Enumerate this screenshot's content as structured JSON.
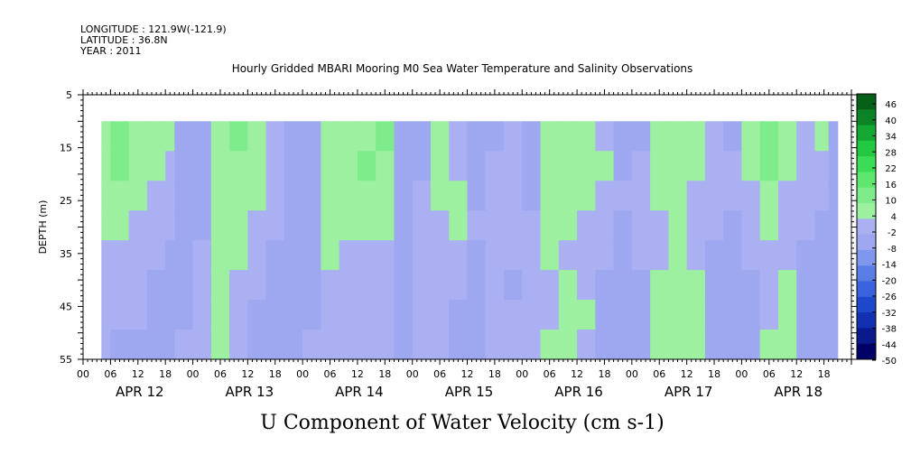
{
  "header": {
    "longitude": "LONGITUDE : 121.9W(-121.9)",
    "latitude": "LATITUDE : 36.8N",
    "year": "YEAR : 2011"
  },
  "chart_data": {
    "type": "heatmap",
    "title": "Hourly Gridded MBARI Mooring M0 Sea Water Temperature and Salinity Observations",
    "xlabel": "",
    "ylabel": "DEPTH (m)",
    "colorbar_label": "U Component of Water Velocity (cm s-1)",
    "ylim": [
      5,
      55
    ],
    "y_reversed": true,
    "yticks": [
      5,
      15,
      25,
      35,
      45,
      55
    ],
    "xticks_hours": [
      "00",
      "06",
      "12",
      "18",
      "00",
      "06",
      "12",
      "18",
      "00",
      "06",
      "12",
      "18",
      "00",
      "06",
      "12",
      "18",
      "00",
      "06",
      "12",
      "18",
      "00",
      "06",
      "12",
      "18",
      "00",
      "06",
      "12",
      "18"
    ],
    "x_days": [
      "APR 12",
      "APR 13",
      "APR 14",
      "APR 15",
      "APR 16",
      "APR 17",
      "APR 18"
    ],
    "x_range_hours": [
      0,
      168
    ],
    "data_extent": {
      "x_start_hour": 4,
      "x_end_hour": 165,
      "depth_top": 10,
      "depth_bottom": 55
    },
    "colorbar": {
      "levels": [
        -50,
        -44,
        -38,
        -32,
        -26,
        -20,
        -14,
        -8,
        -2,
        4,
        10,
        16,
        22,
        28,
        34,
        40,
        46
      ],
      "labels": [
        "46",
        "40",
        "34",
        "28",
        "22",
        "16",
        "10",
        "4",
        "-2",
        "-8",
        "-14",
        "-20",
        "-26",
        "-32",
        "-38",
        "-44",
        "-50"
      ],
      "colors": [
        "#000066",
        "#0a1a8c",
        "#1230b0",
        "#1e48cc",
        "#3a62dc",
        "#5a7ee6",
        "#7f97ec",
        "#9ea8f0",
        "#aab0f2",
        "#9cf0a0",
        "#7eec8a",
        "#5ee66e",
        "#3cdc54",
        "#22c840",
        "#14a832",
        "#0c8426",
        "#06601a"
      ]
    },
    "columns": [
      {
        "start": 4,
        "end": 6,
        "profile": [
          8,
          6,
          4,
          4,
          3,
          2,
          1,
          0
        ]
      },
      {
        "start": 6,
        "end": 10,
        "profile": [
          10,
          12,
          9,
          6,
          3,
          0,
          -2,
          -3
        ]
      },
      {
        "start": 10,
        "end": 14,
        "profile": [
          9,
          8,
          6,
          3,
          1,
          -2,
          -2,
          -3
        ]
      },
      {
        "start": 14,
        "end": 18,
        "profile": [
          6,
          5,
          3,
          2,
          -2,
          -3,
          -4,
          -3
        ]
      },
      {
        "start": 18,
        "end": 20,
        "profile": [
          4,
          3,
          2,
          0,
          -3,
          -4,
          -5,
          -5
        ]
      },
      {
        "start": 20,
        "end": 24,
        "profile": [
          -4,
          -5,
          -6,
          -6,
          -5,
          -4,
          -3,
          -2
        ]
      },
      {
        "start": 24,
        "end": 28,
        "profile": [
          -5,
          -4,
          -4,
          -3,
          -2,
          -1,
          1,
          2
        ]
      },
      {
        "start": 28,
        "end": 32,
        "profile": [
          6,
          8,
          7,
          6,
          5,
          6,
          7,
          8
        ]
      },
      {
        "start": 32,
        "end": 36,
        "profile": [
          10,
          9,
          8,
          6,
          5,
          3,
          2,
          1
        ]
      },
      {
        "start": 36,
        "end": 40,
        "profile": [
          7,
          5,
          4,
          2,
          0,
          -2,
          -3,
          -4
        ]
      },
      {
        "start": 40,
        "end": 44,
        "profile": [
          3,
          2,
          0,
          -2,
          -3,
          -4,
          -5,
          -4
        ]
      },
      {
        "start": 44,
        "end": 48,
        "profile": [
          -4,
          -5,
          -6,
          -6,
          -6,
          -5,
          -4,
          -3
        ]
      },
      {
        "start": 48,
        "end": 52,
        "profile": [
          -6,
          -6,
          -5,
          -5,
          -5,
          -4,
          -3,
          -2
        ]
      },
      {
        "start": 52,
        "end": 56,
        "profile": [
          7,
          8,
          6,
          5,
          4,
          3,
          2,
          3
        ]
      },
      {
        "start": 56,
        "end": 60,
        "profile": [
          9,
          7,
          5,
          4,
          2,
          1,
          2,
          3
        ]
      },
      {
        "start": 60,
        "end": 64,
        "profile": [
          8,
          10,
          8,
          5,
          3,
          2,
          1,
          0
        ]
      },
      {
        "start": 64,
        "end": 68,
        "profile": [
          12,
          9,
          6,
          4,
          2,
          0,
          -1,
          -2
        ]
      },
      {
        "start": 68,
        "end": 72,
        "profile": [
          -3,
          -3,
          -4,
          -5,
          -6,
          -6,
          -7,
          -7
        ]
      },
      {
        "start": 72,
        "end": 76,
        "profile": [
          -4,
          -3,
          -1,
          1,
          2,
          2,
          2,
          3
        ]
      },
      {
        "start": 76,
        "end": 80,
        "profile": [
          5,
          6,
          4,
          3,
          3,
          2,
          3,
          2
        ]
      },
      {
        "start": 80,
        "end": 84,
        "profile": [
          3,
          2,
          4,
          5,
          3,
          2,
          -3,
          -4
        ]
      },
      {
        "start": 84,
        "end": 88,
        "profile": [
          -5,
          -4,
          -3,
          -2,
          -3,
          -4,
          -5,
          -5
        ]
      },
      {
        "start": 88,
        "end": 92,
        "profile": [
          -3,
          -2,
          1,
          2,
          3,
          2,
          1,
          -2
        ]
      },
      {
        "start": 92,
        "end": 96,
        "profile": [
          2,
          3,
          2,
          1,
          -2,
          -3,
          -2,
          -2
        ]
      },
      {
        "start": 96,
        "end": 100,
        "profile": [
          -4,
          -3,
          -3,
          -2,
          -2,
          -1,
          2,
          3
        ]
      },
      {
        "start": 100,
        "end": 104,
        "profile": [
          8,
          9,
          7,
          5,
          4,
          3,
          3,
          5
        ]
      },
      {
        "start": 104,
        "end": 108,
        "profile": [
          9,
          8,
          6,
          4,
          3,
          4,
          6,
          7
        ]
      },
      {
        "start": 108,
        "end": 112,
        "profile": [
          4,
          5,
          4,
          3,
          2,
          3,
          4,
          3
        ]
      },
      {
        "start": 112,
        "end": 116,
        "profile": [
          3,
          4,
          3,
          2,
          -2,
          -3,
          -4,
          -5
        ]
      },
      {
        "start": 116,
        "end": 120,
        "profile": [
          -4,
          -3,
          -2,
          -3,
          -4,
          -5,
          -6,
          -6
        ]
      },
      {
        "start": 120,
        "end": 124,
        "profile": [
          -3,
          -2,
          2,
          3,
          -2,
          -3,
          -4,
          -5
        ]
      },
      {
        "start": 124,
        "end": 128,
        "profile": [
          6,
          5,
          4,
          3,
          2,
          4,
          5,
          6
        ]
      },
      {
        "start": 128,
        "end": 132,
        "profile": [
          9,
          8,
          7,
          5,
          4,
          6,
          7,
          8
        ]
      },
      {
        "start": 132,
        "end": 136,
        "profile": [
          5,
          4,
          3,
          2,
          3,
          4,
          5,
          5
        ]
      },
      {
        "start": 136,
        "end": 140,
        "profile": [
          2,
          3,
          2,
          -2,
          -3,
          -4,
          -5,
          -5
        ]
      },
      {
        "start": 140,
        "end": 144,
        "profile": [
          -3,
          -2,
          -2,
          -3,
          -4,
          -5,
          -6,
          -6
        ]
      },
      {
        "start": 144,
        "end": 148,
        "profile": [
          4,
          6,
          3,
          2,
          -2,
          -3,
          -5,
          -6
        ]
      },
      {
        "start": 148,
        "end": 152,
        "profile": [
          11,
          10,
          7,
          5,
          3,
          2,
          3,
          4
        ]
      },
      {
        "start": 152,
        "end": 156,
        "profile": [
          5,
          4,
          3,
          3,
          2,
          5,
          8,
          9
        ]
      },
      {
        "start": 156,
        "end": 160,
        "profile": [
          3,
          2,
          2,
          -2,
          -3,
          -4,
          -4,
          -5
        ]
      },
      {
        "start": 160,
        "end": 163,
        "profile": [
          4,
          3,
          2,
          -3,
          -4,
          -5,
          -6,
          -6
        ]
      },
      {
        "start": 163,
        "end": 165,
        "profile": [
          -4,
          -5,
          -6,
          -6,
          -7,
          -7,
          -7,
          -7
        ]
      }
    ]
  }
}
